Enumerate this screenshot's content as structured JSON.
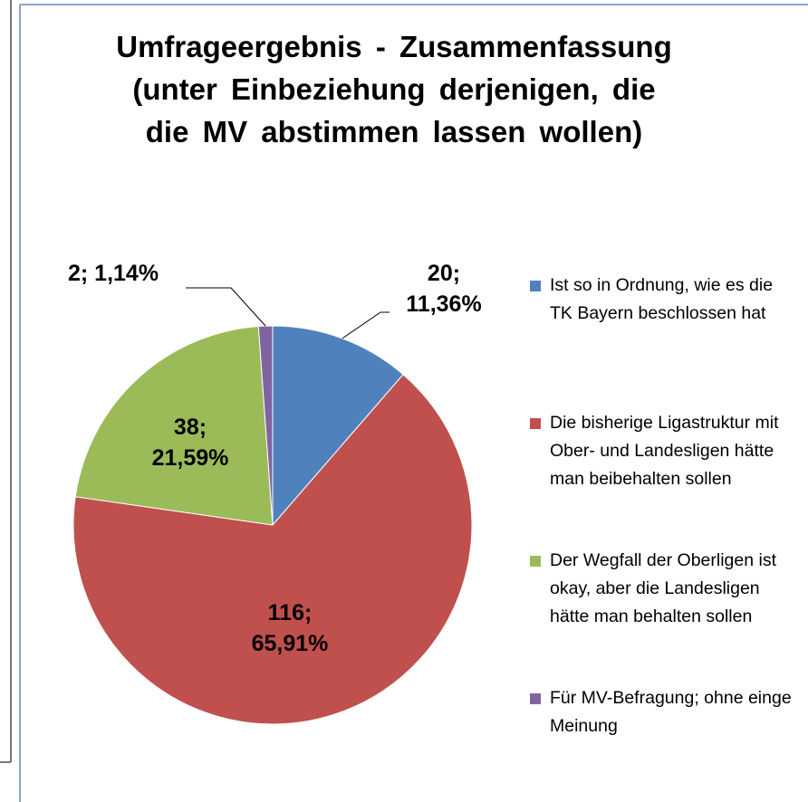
{
  "chart_data": {
    "type": "pie",
    "title": "Umfrageergebnis - Zusammenfassung (unter Einbeziehung derjenigen, die die MV abstimmen lassen wollen)",
    "categories": [
      "Ist so in Ordnung, wie es die TK Bayern beschlossen hat",
      "Die bisherige Ligastruktur mit Ober- und Landesligen hätte man beibehalten sollen",
      "Der Wegfall der Oberligen ist okay, aber die Landesligen hätte man behalten sollen",
      "Für MV-Befragung; ohne einge Meinung"
    ],
    "values": [
      20,
      116,
      38,
      2
    ],
    "value_labels": [
      "20; 11,36%",
      "116; 65,91%",
      "38; 21,59%",
      "2; 1,14%"
    ],
    "colors": [
      "#4f81bd",
      "#c0504d",
      "#9bbb59",
      "#8064a2"
    ],
    "legend": "right"
  }
}
